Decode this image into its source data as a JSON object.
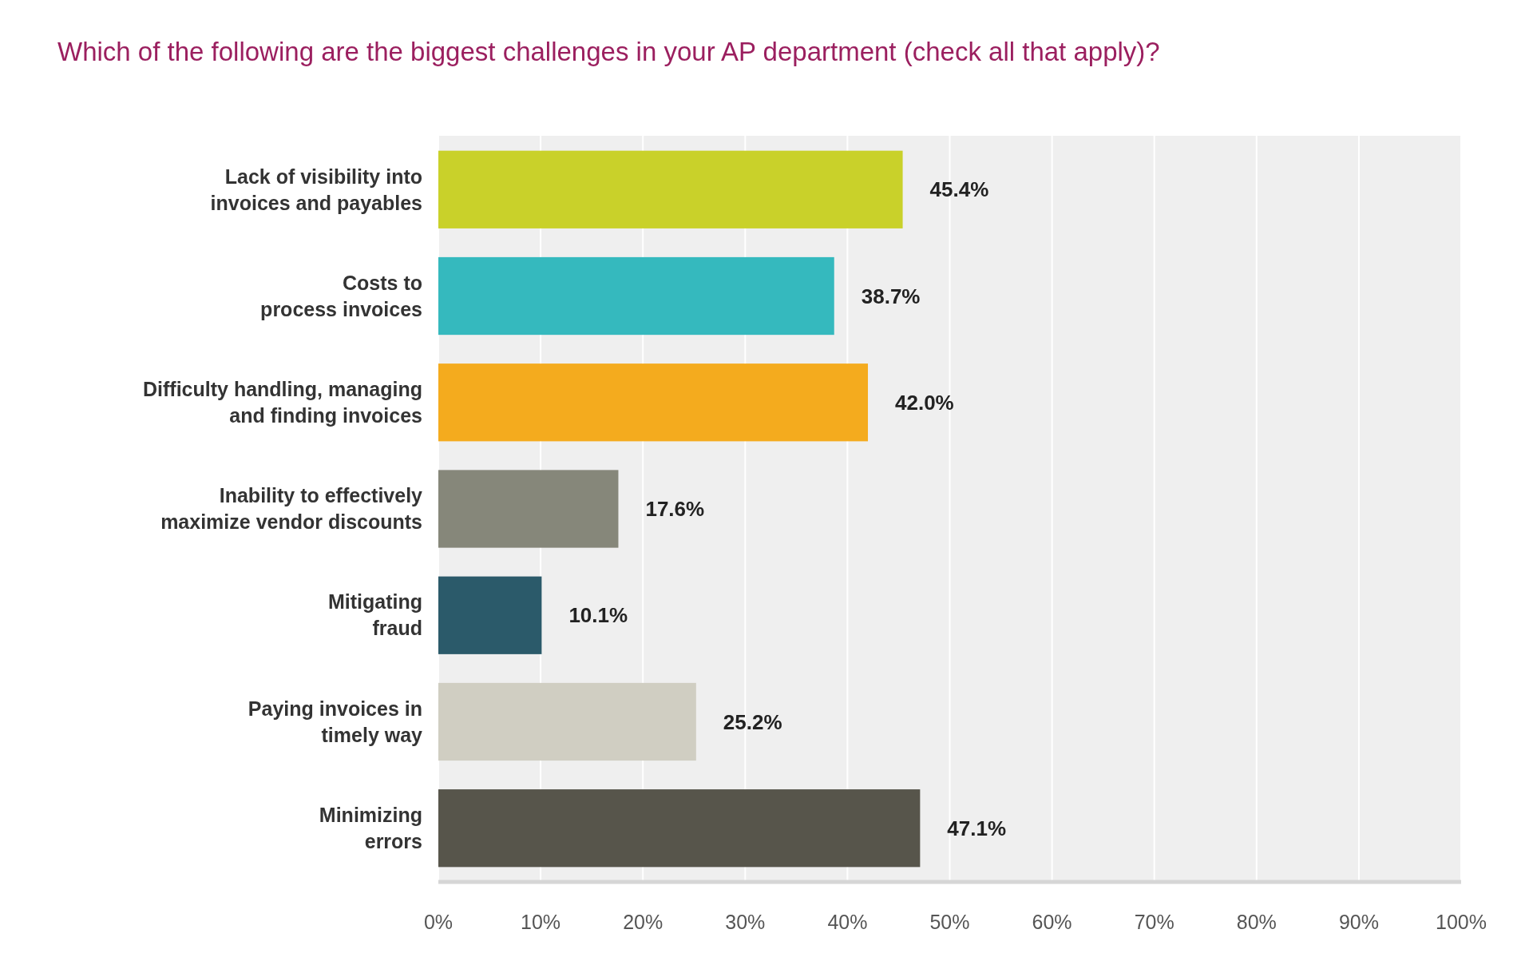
{
  "chart_data": {
    "type": "bar",
    "orientation": "horizontal",
    "title": "Which of the following are the biggest challenges in your AP department (check all that apply)?",
    "categories": [
      "Lack of visibility into\ninvoices and payables",
      "Costs to\nprocess invoices",
      "Difficulty handling, managing\nand finding invoices",
      "Inability to effectively\nmaximize vendor discounts",
      "Mitigating\nfraud",
      "Paying invoices in\ntimely way",
      "Minimizing\nerrors"
    ],
    "values": [
      45.4,
      38.7,
      42.0,
      17.6,
      10.1,
      25.2,
      47.1
    ],
    "colors": [
      "#c9d12a",
      "#35b9be",
      "#f4ab1e",
      "#86877a",
      "#2b5a6a",
      "#d0cec2",
      "#57554b"
    ],
    "value_labels": [
      "45.4%",
      "38.7%",
      "42.0%",
      "17.6%",
      "10.1%",
      "25.2%",
      "47.1%"
    ],
    "xlim": [
      0,
      100
    ],
    "xticks": [
      {
        "value": 0,
        "label": "0%"
      },
      {
        "value": 10,
        "label": "10%"
      },
      {
        "value": 20,
        "label": "20%"
      },
      {
        "value": 30,
        "label": "30%"
      },
      {
        "value": 40,
        "label": "40%"
      },
      {
        "value": 50,
        "label": "50%"
      },
      {
        "value": 60,
        "label": "60%"
      },
      {
        "value": 70,
        "label": "70%"
      },
      {
        "value": 80,
        "label": "80%"
      },
      {
        "value": 90,
        "label": "90%"
      },
      {
        "value": 100,
        "label": "100%"
      }
    ],
    "grid": "x"
  }
}
